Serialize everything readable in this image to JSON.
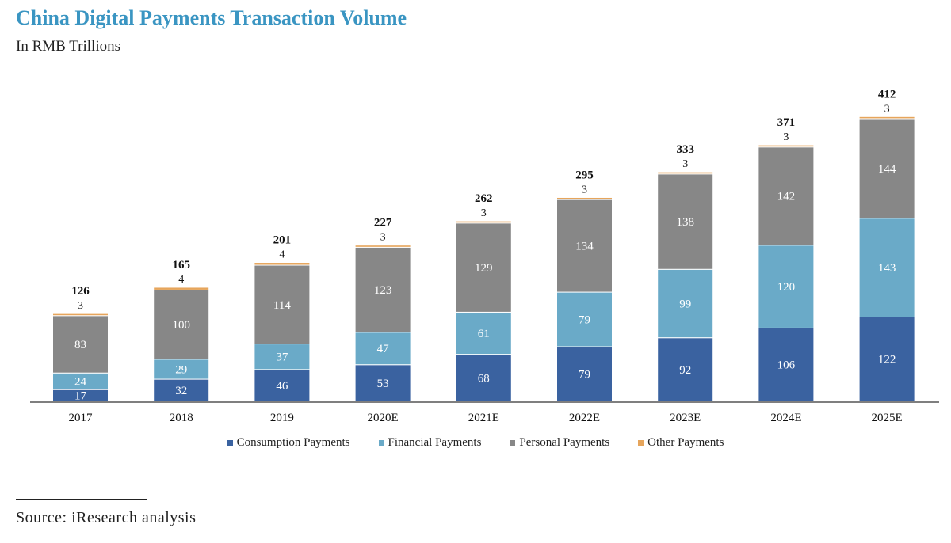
{
  "chart_data": {
    "type": "bar",
    "stacked": true,
    "title": "China Digital Payments Transaction Volume",
    "subtitle": "In RMB Trillions",
    "xlabel": "",
    "ylabel": "",
    "ylim": [
      0,
      420
    ],
    "grid": false,
    "categories": [
      "2017",
      "2018",
      "2019",
      "2020E",
      "2021E",
      "2022E",
      "2023E",
      "2024E",
      "2025E"
    ],
    "series": [
      {
        "name": "Consumption Payments",
        "color": "#3a62a0",
        "label_color": "#ffffff",
        "values": [
          17,
          32,
          46,
          53,
          68,
          79,
          92,
          106,
          122
        ]
      },
      {
        "name": "Financial Payments",
        "color": "#6aaac8",
        "label_color": "#ffffff",
        "values": [
          24,
          29,
          37,
          47,
          61,
          79,
          99,
          120,
          143
        ]
      },
      {
        "name": "Personal Payments",
        "color": "#878787",
        "label_color": "#ffffff",
        "values": [
          83,
          100,
          114,
          123,
          129,
          134,
          138,
          142,
          144
        ]
      },
      {
        "name": "Other Payments",
        "color": "#e6a55c",
        "label_color": "#111111",
        "values": [
          3,
          4,
          4,
          3,
          3,
          3,
          3,
          3,
          3
        ]
      }
    ],
    "totals": [
      126,
      165,
      201,
      227,
      262,
      295,
      333,
      371,
      412
    ],
    "legend_position": "bottom"
  },
  "source": "Source: iResearch analysis"
}
